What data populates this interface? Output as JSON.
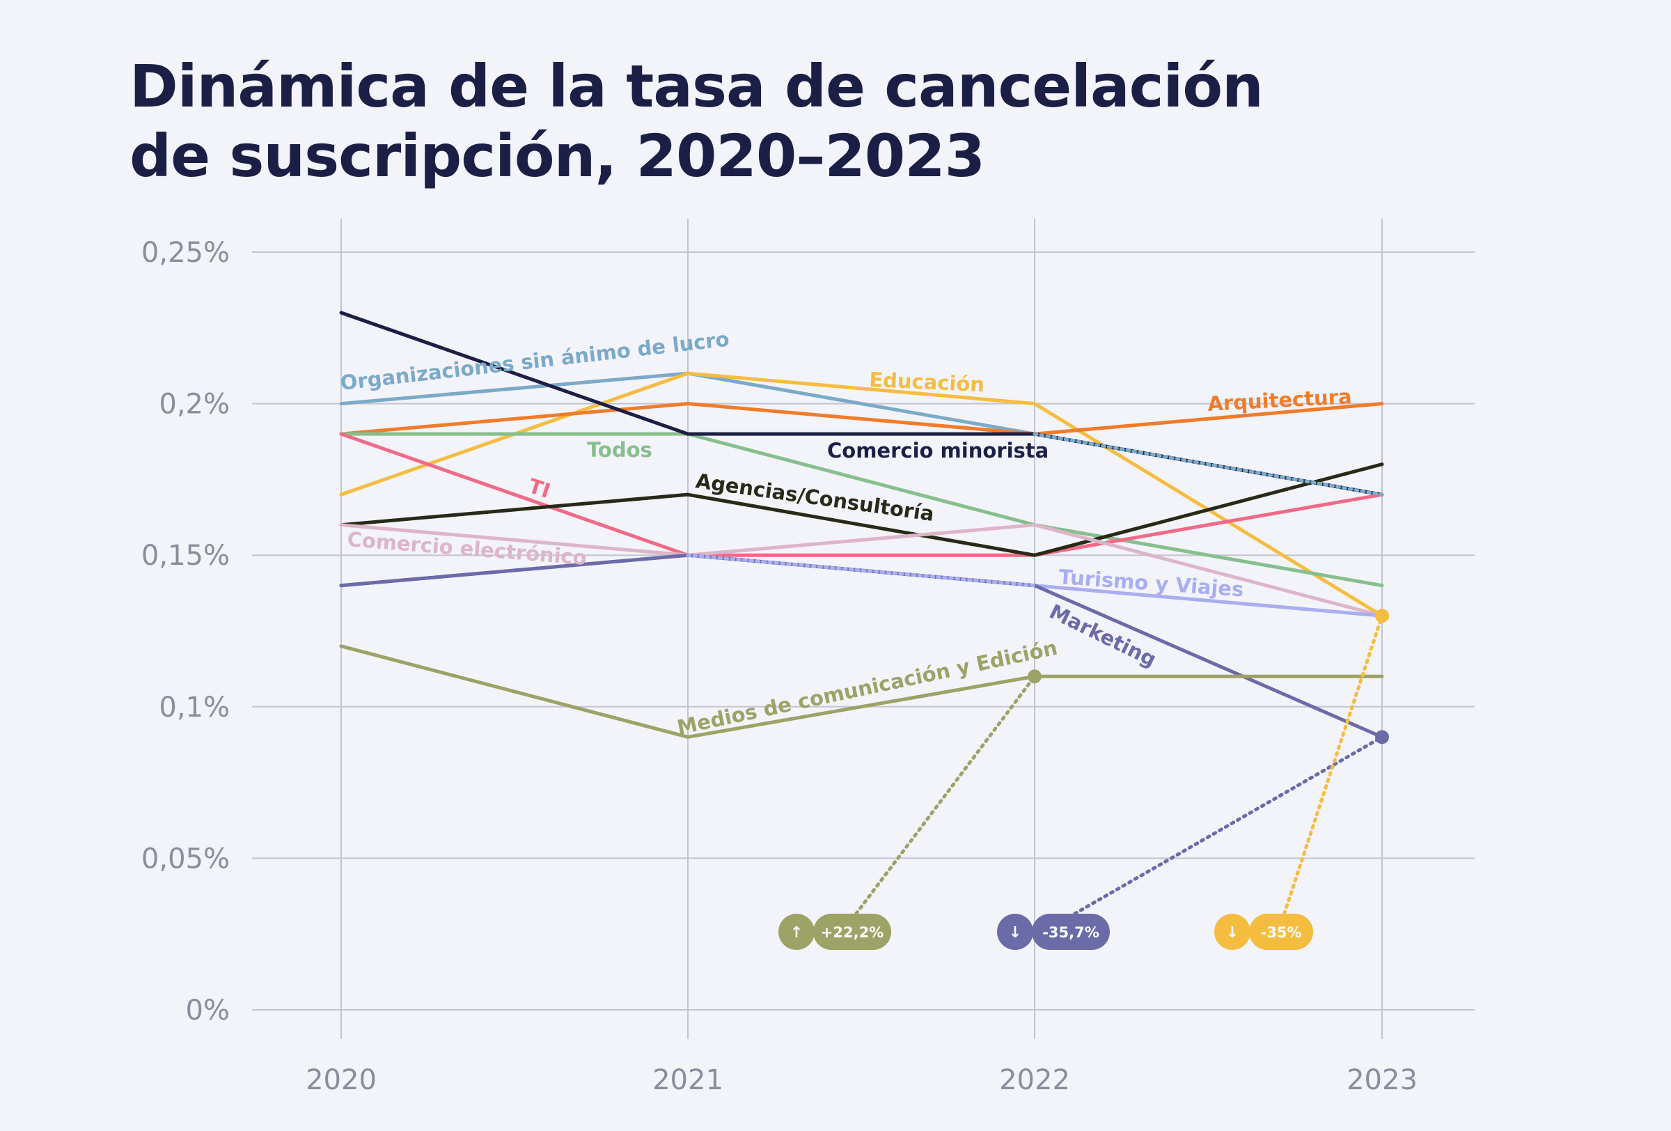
{
  "chart_data": {
    "type": "line",
    "title_lines": [
      "Dinámica de la tasa de cancelación",
      "de suscripción, 2020–2023"
    ],
    "xlabel": "",
    "ylabel": "",
    "categories": [
      "2020",
      "2021",
      "2022",
      "2023"
    ],
    "ylim": [
      0,
      0.25
    ],
    "y_ticks": [
      {
        "value": 0,
        "label": "0%"
      },
      {
        "value": 0.05,
        "label": "0,05%"
      },
      {
        "value": 0.1,
        "label": "0,1%"
      },
      {
        "value": 0.15,
        "label": "0,15%"
      },
      {
        "value": 0.2,
        "label": "0,2%"
      },
      {
        "value": 0.25,
        "label": "0,25%"
      }
    ],
    "grid": true,
    "series": [
      {
        "name": "Organizaciones sin ánimo de lucro",
        "color": "#7aaac8",
        "values": [
          0.2,
          0.21,
          0.19,
          0.17
        ]
      },
      {
        "name": "Educación",
        "color": "#f5bd40",
        "values": [
          0.17,
          0.21,
          0.2,
          0.13
        ]
      },
      {
        "name": "Arquitectura",
        "color": "#f07c2a",
        "values": [
          0.19,
          0.2,
          0.19,
          0.2
        ]
      },
      {
        "name": "Todos",
        "color": "#86bf8d",
        "values": [
          0.19,
          0.19,
          0.16,
          0.14
        ]
      },
      {
        "name": "Comercio minorista",
        "color": "#1c1f45",
        "values": [
          0.23,
          0.19,
          0.19,
          0.17
        ]
      },
      {
        "name": "TI",
        "color": "#f06a88",
        "values": [
          0.19,
          0.15,
          0.15,
          0.17
        ]
      },
      {
        "name": "Agencias/Consultoría",
        "color": "#262a17",
        "values": [
          0.16,
          0.17,
          0.15,
          0.18
        ]
      },
      {
        "name": "Comercio electrónico",
        "color": "#dcb6c8",
        "values": [
          0.16,
          0.15,
          0.16,
          0.13
        ]
      },
      {
        "name": "Turismo y Viajes",
        "color": "#a8aef0",
        "values": [
          0.14,
          0.15,
          0.14,
          0.13
        ]
      },
      {
        "name": "Marketing",
        "color": "#6b6ba8",
        "values": [
          0.14,
          0.15,
          0.14,
          0.09
        ]
      },
      {
        "name": "Medios de comunicación y Edición",
        "color": "#9da266",
        "values": [
          0.12,
          0.09,
          0.11,
          0.11
        ]
      }
    ],
    "badges": [
      {
        "text": "+22,2%",
        "arrow": "↑",
        "color": "#9da266",
        "target_series": "Medios de comunicación y Edición",
        "target_year": "2022"
      },
      {
        "text": "-35,7%",
        "arrow": "↓",
        "color": "#6b6ba8",
        "target_series": "Marketing",
        "target_year": "2023"
      },
      {
        "text": "-35%",
        "arrow": "↓",
        "color": "#f5bd40",
        "target_series": "Educación",
        "target_year": "2023"
      }
    ]
  }
}
